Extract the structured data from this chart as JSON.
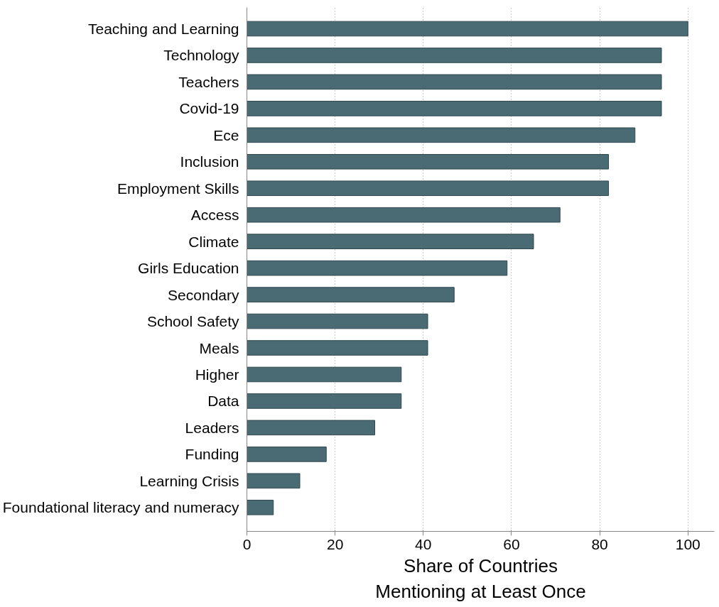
{
  "chart_data": {
    "type": "bar",
    "orientation": "horizontal",
    "xlabel": "Share of Countries\nMentioning at Least Once",
    "categories": [
      "Teaching and Learning",
      "Technology",
      "Teachers",
      "Covid-19",
      "Ece",
      "Inclusion",
      "Employment Skills",
      "Access",
      "Climate",
      "Girls Education",
      "Secondary",
      "School Safety",
      "Meals",
      "Higher",
      "Data",
      "Leaders",
      "Funding",
      "Learning Crisis",
      "Foundational literacy and numeracy"
    ],
    "values": [
      100,
      94,
      94,
      94,
      88,
      82,
      82,
      71,
      65,
      59,
      47,
      41,
      41,
      35,
      35,
      29,
      18,
      12,
      6
    ],
    "color": "#4a6b73",
    "xlim": [
      0,
      106
    ],
    "xticks": [
      0,
      20,
      40,
      60,
      80,
      100
    ],
    "grid": "x"
  }
}
